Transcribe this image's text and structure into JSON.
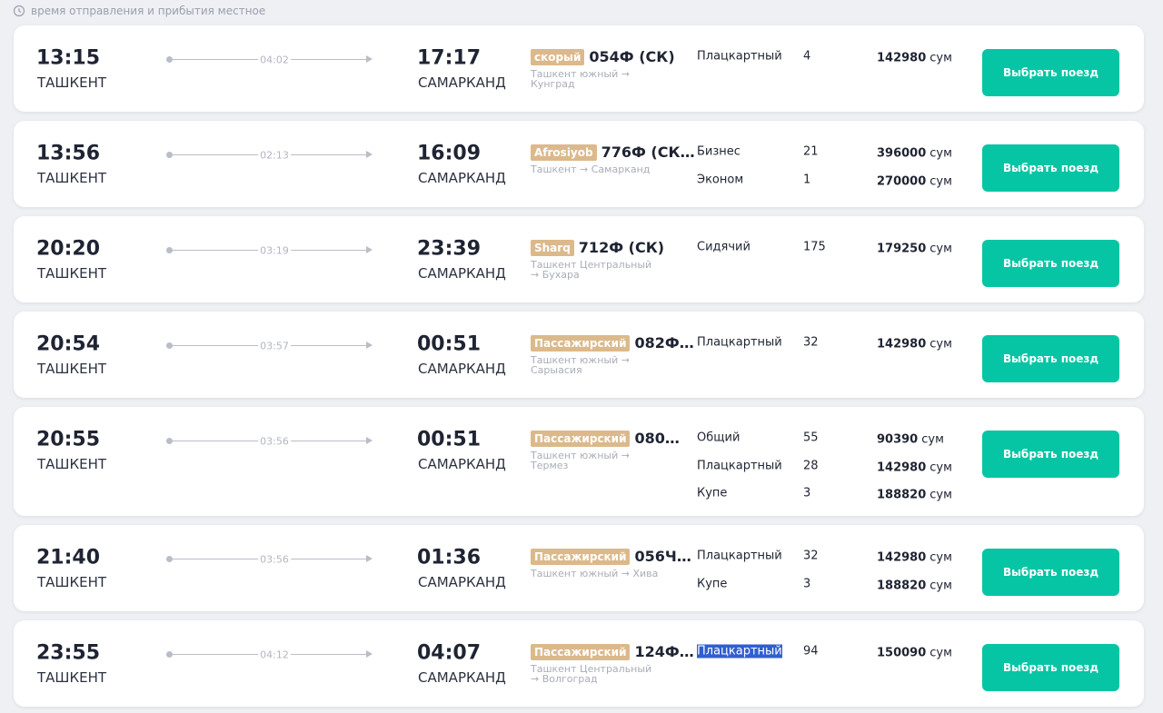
{
  "note": "время отправления и прибытия местное",
  "trains": [
    {
      "departure_time": "13:15",
      "departure_city": "ТАШКЕНТ",
      "duration": "04:02",
      "arrival_time": "17:17",
      "arrival_city": "САМАРКАНД",
      "badge": "скорый",
      "number": "054Ф (СК)",
      "route": "Ташкент южный → Кунград",
      "classes": [
        {
          "name": "Плацкартный",
          "seats": 4,
          "price": 142980,
          "currency": "сум"
        }
      ],
      "button": "Выбрать поезд"
    },
    {
      "departure_time": "13:56",
      "departure_city": "ТАШКЕНТ",
      "duration": "02:13",
      "arrival_time": "16:09",
      "arrival_city": "САМАРКАНД",
      "badge": "Afrosiyob",
      "number": "776Ф (СК…",
      "route": "Ташкент → Самарканд",
      "classes": [
        {
          "name": "Бизнес",
          "seats": 21,
          "price": 396000,
          "currency": "сум"
        },
        {
          "name": "Эконом",
          "seats": 1,
          "price": 270000,
          "currency": "сум"
        }
      ],
      "button": "Выбрать поезд"
    },
    {
      "departure_time": "20:20",
      "departure_city": "ТАШКЕНТ",
      "duration": "03:19",
      "arrival_time": "23:39",
      "arrival_city": "САМАРКАНД",
      "badge": "Sharq",
      "number": "712Ф (СК)",
      "route": "Ташкент Центральный → Бухара",
      "classes": [
        {
          "name": "Сидячий",
          "seats": 175,
          "price": 179250,
          "currency": "сум"
        }
      ],
      "button": "Выбрать поезд"
    },
    {
      "departure_time": "20:54",
      "departure_city": "ТАШКЕНТ",
      "duration": "03:57",
      "arrival_time": "00:51",
      "arrival_city": "САМАРКАНД",
      "badge": "Пассажирский",
      "number": "082Ф…",
      "route": "Ташкент южный → Сарыасия",
      "classes": [
        {
          "name": "Плацкартный",
          "seats": 32,
          "price": 142980,
          "currency": "сум"
        }
      ],
      "button": "Выбрать поезд"
    },
    {
      "departure_time": "20:55",
      "departure_city": "ТАШКЕНТ",
      "duration": "03:56",
      "arrival_time": "00:51",
      "arrival_city": "САМАРКАНД",
      "badge": "Пассажирский",
      "number": "080…",
      "route": "Ташкент южный → Термез",
      "classes": [
        {
          "name": "Общий",
          "seats": 55,
          "price": 90390,
          "currency": "сум"
        },
        {
          "name": "Плацкартный",
          "seats": 28,
          "price": 142980,
          "currency": "сум"
        },
        {
          "name": "Купе",
          "seats": 3,
          "price": 188820,
          "currency": "сум"
        }
      ],
      "button": "Выбрать поезд"
    },
    {
      "departure_time": "21:40",
      "departure_city": "ТАШКЕНТ",
      "duration": "03:56",
      "arrival_time": "01:36",
      "arrival_city": "САМАРКАНД",
      "badge": "Пассажирский",
      "number": "056Ч…",
      "route": "Ташкент южный → Хива",
      "classes": [
        {
          "name": "Плацкартный",
          "seats": 32,
          "price": 142980,
          "currency": "сум"
        },
        {
          "name": "Купе",
          "seats": 3,
          "price": 188820,
          "currency": "сум"
        }
      ],
      "button": "Выбрать поезд"
    },
    {
      "departure_time": "23:55",
      "departure_city": "ТАШКЕНТ",
      "duration": "04:12",
      "arrival_time": "04:07",
      "arrival_city": "САМАРКАНД",
      "badge": "Пассажирский",
      "number": "124Ф…",
      "route": "Ташкент Центральный → Волгоград",
      "classes": [
        {
          "name": "Плацкартный",
          "seats": 94,
          "price": 150090,
          "currency": "сум"
        }
      ],
      "button": "Выбрать поезд"
    }
  ]
}
